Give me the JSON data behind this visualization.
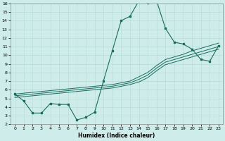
{
  "xlabel": "Humidex (Indice chaleur)",
  "ylabel": "",
  "bg_color": "#cdecea",
  "line_color": "#1a6b5e",
  "grid_color": "#b8ddd8",
  "xlim": [
    -0.5,
    23.5
  ],
  "ylim": [
    2,
    16
  ],
  "xtick_labels": [
    "0",
    "1",
    "2",
    "3",
    "4",
    "5",
    "6",
    "7",
    "8",
    "9",
    "10",
    "11",
    "12",
    "13",
    "14",
    "15",
    "16",
    "17",
    "18",
    "19",
    "20",
    "21",
    "22",
    "23"
  ],
  "xtick_vals": [
    0,
    1,
    2,
    3,
    4,
    5,
    6,
    7,
    8,
    9,
    10,
    11,
    12,
    13,
    14,
    15,
    16,
    17,
    18,
    19,
    20,
    21,
    22,
    23
  ],
  "ytick_vals": [
    2,
    3,
    4,
    5,
    6,
    7,
    8,
    9,
    10,
    11,
    12,
    13,
    14,
    15,
    16
  ],
  "series_main": {
    "x": [
      0,
      1,
      2,
      3,
      4,
      5,
      6,
      7,
      8,
      9,
      10,
      11,
      12,
      13,
      14,
      15,
      16,
      17,
      18,
      19,
      20,
      21,
      22,
      23
    ],
    "y": [
      5.5,
      4.7,
      3.3,
      3.3,
      4.4,
      4.3,
      4.3,
      2.5,
      2.8,
      3.4,
      7.0,
      10.5,
      14.0,
      14.5,
      16.3,
      16.1,
      16.3,
      13.1,
      11.5,
      11.3,
      10.7,
      9.5,
      9.3,
      11.1
    ]
  },
  "series_linear": [
    {
      "x": [
        0,
        1,
        2,
        3,
        4,
        5,
        6,
        7,
        8,
        9,
        10,
        11,
        12,
        13,
        14,
        15,
        16,
        17,
        18,
        19,
        20,
        21,
        22,
        23
      ],
      "y": [
        5.5,
        5.6,
        5.7,
        5.8,
        5.9,
        6.0,
        6.1,
        6.2,
        6.3,
        6.4,
        6.5,
        6.6,
        6.8,
        7.0,
        7.5,
        8.0,
        8.8,
        9.5,
        9.8,
        10.1,
        10.5,
        10.8,
        11.1,
        11.4
      ]
    },
    {
      "x": [
        0,
        1,
        2,
        3,
        4,
        5,
        6,
        7,
        8,
        9,
        10,
        11,
        12,
        13,
        14,
        15,
        16,
        17,
        18,
        19,
        20,
        21,
        22,
        23
      ],
      "y": [
        5.3,
        5.4,
        5.5,
        5.6,
        5.7,
        5.8,
        5.9,
        6.0,
        6.1,
        6.2,
        6.3,
        6.4,
        6.6,
        6.8,
        7.2,
        7.7,
        8.5,
        9.2,
        9.5,
        9.8,
        10.1,
        10.4,
        10.7,
        11.0
      ]
    },
    {
      "x": [
        0,
        1,
        2,
        3,
        4,
        5,
        6,
        7,
        8,
        9,
        10,
        11,
        12,
        13,
        14,
        15,
        16,
        17,
        18,
        19,
        20,
        21,
        22,
        23
      ],
      "y": [
        5.1,
        5.2,
        5.3,
        5.4,
        5.5,
        5.6,
        5.7,
        5.8,
        5.9,
        6.0,
        6.1,
        6.2,
        6.4,
        6.6,
        6.9,
        7.4,
        8.2,
        8.9,
        9.2,
        9.5,
        9.8,
        10.1,
        10.4,
        10.7
      ]
    }
  ]
}
